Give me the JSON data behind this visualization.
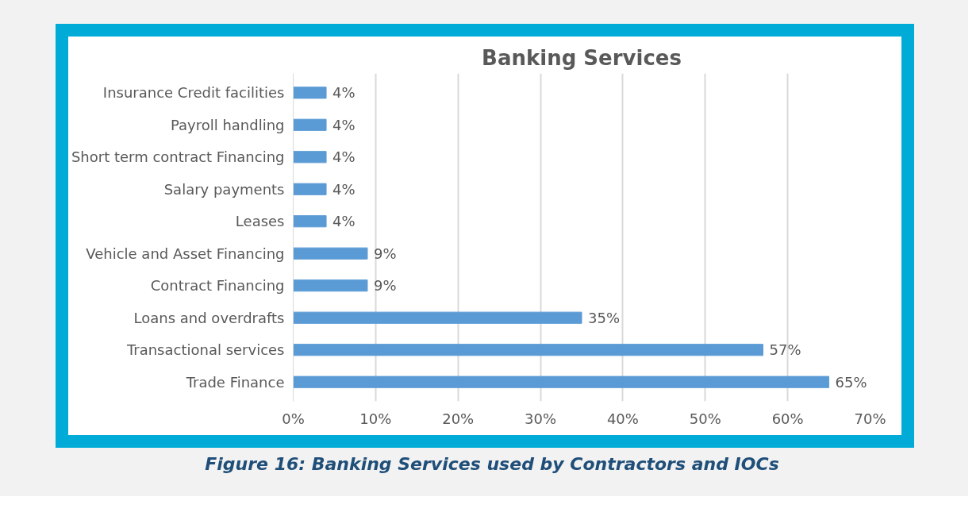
{
  "chart_data": {
    "type": "bar",
    "orientation": "horizontal",
    "title": "Banking Services",
    "categories": [
      "Insurance Credit facilities",
      "Payroll handling",
      "Short term contract Financing",
      "Salary payments",
      "Leases",
      "Vehicle and Asset Financing",
      "Contract Financing",
      "Loans and overdrafts",
      "Transactional services",
      "Trade Finance"
    ],
    "values": [
      4,
      4,
      4,
      4,
      4,
      9,
      9,
      35,
      57,
      65
    ],
    "value_labels": [
      "4%",
      "4%",
      "4%",
      "4%",
      "4%",
      "9%",
      "9%",
      "35%",
      "57%",
      "65%"
    ],
    "color": "#5b9bd5",
    "xlim": [
      0,
      70
    ],
    "xticks": [
      {
        "value": 0,
        "label": "0%"
      },
      {
        "value": 10,
        "label": "10%"
      },
      {
        "value": 20,
        "label": "20%"
      },
      {
        "value": 30,
        "label": "30%"
      },
      {
        "value": 40,
        "label": "40%"
      },
      {
        "value": 50,
        "label": "50%"
      },
      {
        "value": 60,
        "label": "60%"
      },
      {
        "value": 70,
        "label": "70%"
      }
    ],
    "grid": "x",
    "annotations": [
      "Figure 16: Banking Services used by Contractors and IOCs"
    ]
  }
}
